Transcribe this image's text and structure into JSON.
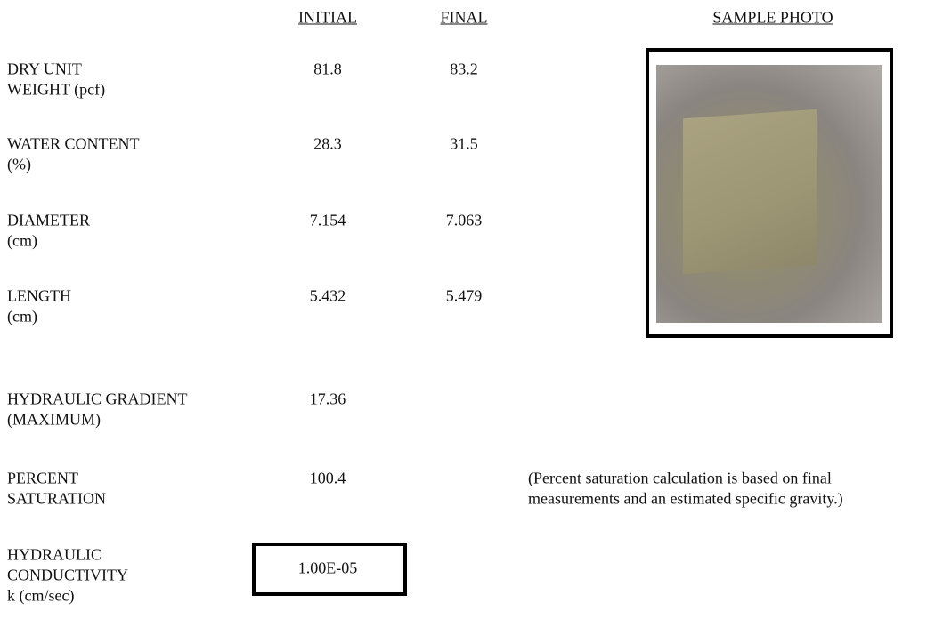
{
  "header": {
    "initial": "INITIAL",
    "final": "FINAL",
    "photo": "SAMPLE PHOTO"
  },
  "rows": [
    {
      "label": [
        "DRY UNIT",
        "WEIGHT (pcf)"
      ],
      "initial": "81.8",
      "final": "83.2"
    },
    {
      "label": [
        "WATER CONTENT",
        "(%)"
      ],
      "initial": "28.3",
      "final": "31.5"
    },
    {
      "label": [
        "DIAMETER",
        "(cm)"
      ],
      "initial": "7.154",
      "final": "7.063"
    },
    {
      "label": [
        "LENGTH",
        "(cm)"
      ],
      "initial": "5.432",
      "final": "5.479"
    },
    {
      "label": [
        "HYDRAULIC GRADIENT",
        "(MAXIMUM)"
      ],
      "initial": "17.36"
    },
    {
      "label": [
        "PERCENT",
        "SATURATION"
      ],
      "initial": "100.4",
      "note": [
        "(Percent saturation calculation is based on final",
        "measurements and an estimated specific gravity.)"
      ]
    },
    {
      "label": [
        "HYDRAULIC",
        "CONDUCTIVITY",
        "k (cm/sec)"
      ],
      "initial": "1.00E-05"
    }
  ]
}
